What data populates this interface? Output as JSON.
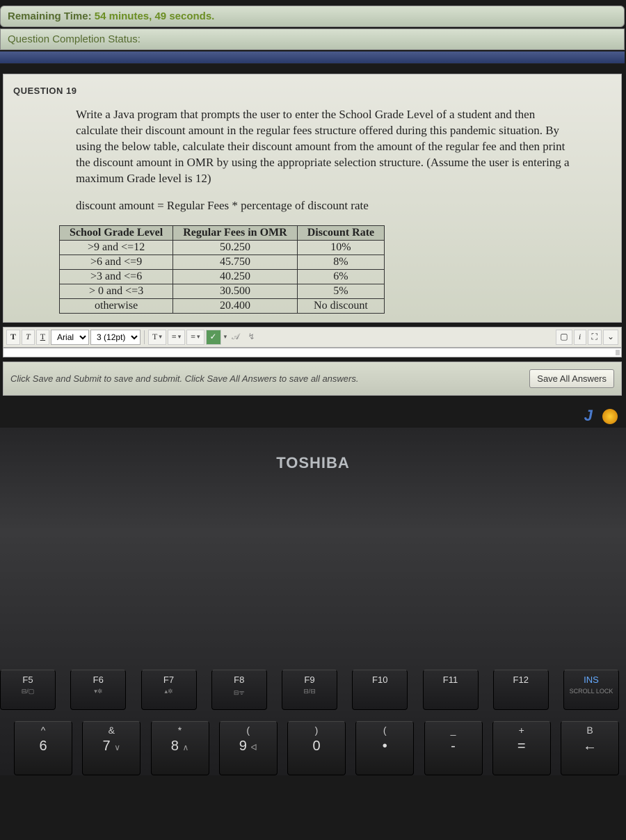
{
  "timer": {
    "label": "Remaining Time:",
    "value": "54 minutes, 49 seconds."
  },
  "status": {
    "label": "Question Completion Status:"
  },
  "question": {
    "number_label": "QUESTION 19",
    "prompt": "Write a Java program that prompts the user to enter the School Grade Level of a student and then calculate their discount amount in the regular fees structure offered during this pandemic situation. By using the below table, calculate their discount amount from the amount of the regular fee and then print the discount amount in OMR by using the appropriate selection structure. (Assume the user is entering a maximum Grade level is 12)",
    "formula": "discount amount = Regular Fees * percentage of discount rate"
  },
  "table": {
    "headers": [
      "School Grade Level",
      "Regular Fees in OMR",
      "Discount Rate"
    ],
    "rows": [
      [
        ">9 and <=12",
        "50.250",
        "10%"
      ],
      [
        ">6 and <=9",
        "45.750",
        "8%"
      ],
      [
        ">3 and <=6",
        "40.250",
        "6%"
      ],
      [
        "> 0 and <=3",
        "30.500",
        "5%"
      ],
      [
        "otherwise",
        "20.400",
        "No discount"
      ]
    ]
  },
  "toolbar": {
    "bold": "T",
    "italic": "T",
    "underline": "T",
    "font": "Arial",
    "size": "3 (12pt)",
    "textcolor": "T",
    "list1": "≡",
    "list2": "≡",
    "spell": "✓",
    "help": "i",
    "full": "⛶",
    "more": "⌄",
    "screen": "▢"
  },
  "save": {
    "hint": "Click Save and Submit to save and submit. Click Save All Answers to save all answers.",
    "button": "Save All Answers"
  },
  "desktop": {
    "letter": "J"
  },
  "laptop": {
    "brand": "TOSHIBA",
    "fkeys": [
      {
        "label": "F5",
        "sub": "⊟/▢"
      },
      {
        "label": "F6",
        "sub": "▾✲"
      },
      {
        "label": "F7",
        "sub": "▴✲"
      },
      {
        "label": "F8",
        "sub": "⊟ᯤ"
      },
      {
        "label": "F9",
        "sub": "⊟/⊟"
      },
      {
        "label": "F10",
        "sub": ""
      },
      {
        "label": "F11",
        "sub": ""
      },
      {
        "label": "F12",
        "sub": ""
      },
      {
        "label": "INS",
        "sub": "SCROLL LOCK"
      }
    ],
    "numkeys": [
      {
        "top": "^",
        "bot": "6",
        "side": "ㄱ"
      },
      {
        "top": "&",
        "bot": "7",
        "side": "∨"
      },
      {
        "top": "*",
        "bot": "8",
        "side": "∧"
      },
      {
        "top": "(",
        "bot": "9",
        "side": "ᐊ"
      },
      {
        "top": ")",
        "bot": "0",
        "side": ""
      },
      {
        "top": "(",
        "bot": "",
        "side": "•"
      },
      {
        "top": "_",
        "bot": "-",
        "side": ""
      },
      {
        "top": "+",
        "bot": "=",
        "side": ""
      },
      {
        "top": "",
        "bot": "←",
        "side": "B"
      }
    ]
  }
}
